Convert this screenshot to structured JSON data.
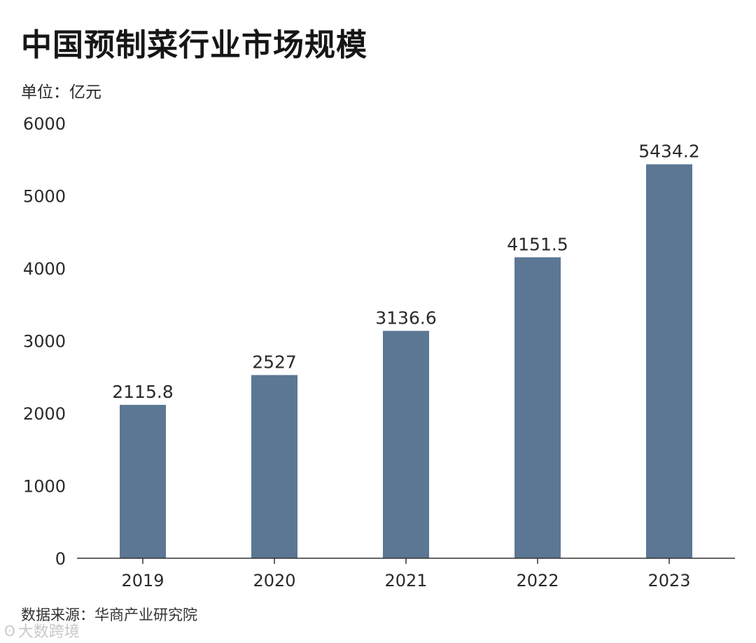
{
  "header": {
    "title": "中国预制菜行业市场规模",
    "unit": "单位：亿元"
  },
  "footer": {
    "source": "数据来源：华商产业研究院",
    "watermark": "大数跨境"
  },
  "colors": {
    "bar": "#5b7794",
    "axis": "#333333",
    "text": "#2a2a2a"
  },
  "chart_data": {
    "type": "bar",
    "title": "中国预制菜行业市场规模",
    "ylabel": "单位：亿元",
    "xlabel": "",
    "categories": [
      "2019",
      "2020",
      "2021",
      "2022",
      "2023"
    ],
    "values": [
      2115.8,
      2527,
      3136.6,
      4151.5,
      5434.2
    ],
    "value_labels": [
      "2115.8",
      "2527",
      "3136.6",
      "4151.5",
      "5434.2"
    ],
    "ylim": [
      0,
      6000
    ],
    "yticks": [
      0,
      1000,
      2000,
      3000,
      4000,
      5000,
      6000
    ],
    "ytick_labels": [
      "0",
      "1000",
      "2000",
      "3000",
      "4000",
      "5000",
      "6000"
    ],
    "grid": false,
    "legend": "none"
  }
}
